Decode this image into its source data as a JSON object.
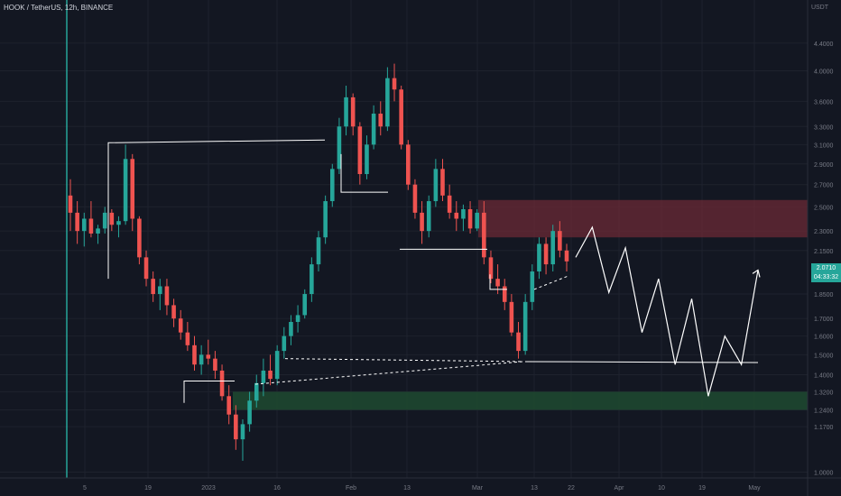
{
  "header": {
    "title": "HOOK / TetherUS, 12h, BINANCE",
    "currency": "USDT"
  },
  "price_badge": {
    "price": "2.0710",
    "countdown": "04:33:32"
  },
  "colors": {
    "background": "#131722",
    "up": "#26a69a",
    "down": "#ef5350",
    "resistance_zone": "#6b2a35",
    "support_zone": "#1f4a30",
    "annotation": "#ffffff",
    "axis_text": "#787b86"
  },
  "chart_data": {
    "type": "candlestick",
    "y_scale": "log",
    "y_range": [
      0.98,
      4.8
    ],
    "y_ticks": [
      "4.4000",
      "4.0000",
      "3.6000",
      "3.3000",
      "3.1000",
      "2.9000",
      "2.7000",
      "2.5000",
      "2.3000",
      "2.1500",
      "1.8500",
      "1.7000",
      "1.6000",
      "1.5000",
      "1.4000",
      "1.3200",
      "1.2400",
      "1.1700",
      "1.0000"
    ],
    "x_ticks": [
      "5",
      "19",
      "2023",
      "16",
      "Feb",
      "13",
      "Mar",
      "13",
      "22",
      "Apr",
      "10",
      "19",
      "May"
    ],
    "last_price": 2.071,
    "series_ohlc_sketch": [
      [
        2.6,
        2.75,
        2.3,
        2.45
      ],
      [
        2.45,
        2.55,
        2.2,
        2.3
      ],
      [
        2.3,
        2.45,
        2.18,
        2.4
      ],
      [
        2.4,
        2.55,
        2.25,
        2.28
      ],
      [
        2.28,
        2.35,
        2.2,
        2.32
      ],
      [
        2.32,
        2.5,
        2.28,
        2.45
      ],
      [
        2.45,
        2.48,
        2.3,
        2.35
      ],
      [
        2.35,
        2.42,
        2.25,
        2.38
      ],
      [
        2.38,
        3.1,
        2.35,
        2.95
      ],
      [
        2.95,
        3.0,
        2.3,
        2.4
      ],
      [
        2.4,
        2.42,
        2.05,
        2.1
      ],
      [
        2.1,
        2.15,
        1.9,
        1.95
      ],
      [
        1.95,
        2.0,
        1.8,
        1.85
      ],
      [
        1.85,
        1.95,
        1.75,
        1.9
      ],
      [
        1.9,
        1.95,
        1.72,
        1.78
      ],
      [
        1.78,
        1.82,
        1.65,
        1.7
      ],
      [
        1.7,
        1.75,
        1.58,
        1.62
      ],
      [
        1.62,
        1.68,
        1.52,
        1.55
      ],
      [
        1.55,
        1.6,
        1.42,
        1.45
      ],
      [
        1.45,
        1.55,
        1.4,
        1.5
      ],
      [
        1.5,
        1.58,
        1.45,
        1.48
      ],
      [
        1.48,
        1.52,
        1.38,
        1.42
      ],
      [
        1.42,
        1.45,
        1.28,
        1.3
      ],
      [
        1.3,
        1.35,
        1.18,
        1.22
      ],
      [
        1.22,
        1.26,
        1.08,
        1.12
      ],
      [
        1.12,
        1.2,
        1.04,
        1.18
      ],
      [
        1.18,
        1.32,
        1.15,
        1.28
      ],
      [
        1.28,
        1.4,
        1.25,
        1.36
      ],
      [
        1.36,
        1.48,
        1.3,
        1.42
      ],
      [
        1.42,
        1.5,
        1.35,
        1.38
      ],
      [
        1.38,
        1.55,
        1.35,
        1.52
      ],
      [
        1.52,
        1.65,
        1.48,
        1.6
      ],
      [
        1.6,
        1.72,
        1.55,
        1.68
      ],
      [
        1.68,
        1.78,
        1.62,
        1.72
      ],
      [
        1.72,
        1.88,
        1.7,
        1.85
      ],
      [
        1.85,
        2.1,
        1.8,
        2.05
      ],
      [
        2.05,
        2.3,
        2.0,
        2.25
      ],
      [
        2.25,
        2.6,
        2.2,
        2.55
      ],
      [
        2.55,
        2.9,
        2.5,
        2.85
      ],
      [
        2.85,
        3.4,
        2.8,
        3.3
      ],
      [
        3.3,
        3.8,
        3.2,
        3.65
      ],
      [
        3.65,
        3.7,
        3.2,
        3.3
      ],
      [
        3.3,
        3.35,
        2.7,
        2.8
      ],
      [
        2.8,
        3.2,
        2.75,
        3.1
      ],
      [
        3.1,
        3.55,
        3.05,
        3.45
      ],
      [
        3.45,
        3.6,
        3.2,
        3.3
      ],
      [
        3.3,
        4.05,
        3.25,
        3.9
      ],
      [
        3.9,
        4.1,
        3.6,
        3.75
      ],
      [
        3.75,
        3.8,
        3.05,
        3.1
      ],
      [
        3.1,
        3.15,
        2.65,
        2.7
      ],
      [
        2.7,
        2.75,
        2.4,
        2.45
      ],
      [
        2.45,
        2.55,
        2.2,
        2.3
      ],
      [
        2.3,
        2.6,
        2.25,
        2.55
      ],
      [
        2.55,
        2.95,
        2.5,
        2.85
      ],
      [
        2.85,
        2.95,
        2.55,
        2.6
      ],
      [
        2.6,
        2.7,
        2.4,
        2.45
      ],
      [
        2.45,
        2.55,
        2.3,
        2.4
      ],
      [
        2.4,
        2.52,
        2.3,
        2.48
      ],
      [
        2.48,
        2.55,
        2.28,
        2.32
      ],
      [
        2.32,
        2.48,
        2.3,
        2.45
      ],
      [
        2.45,
        2.55,
        2.05,
        2.1
      ],
      [
        2.1,
        2.15,
        1.92,
        1.95
      ],
      [
        1.95,
        2.05,
        1.85,
        1.9
      ],
      [
        1.9,
        1.95,
        1.75,
        1.8
      ],
      [
        1.8,
        1.85,
        1.6,
        1.62
      ],
      [
        1.62,
        1.68,
        1.48,
        1.52
      ],
      [
        1.52,
        1.85,
        1.5,
        1.8
      ],
      [
        1.8,
        2.05,
        1.75,
        2.0
      ],
      [
        2.0,
        2.25,
        1.95,
        2.2
      ],
      [
        2.2,
        2.25,
        1.98,
        2.05
      ],
      [
        2.05,
        2.35,
        2.0,
        2.3
      ],
      [
        2.3,
        2.38,
        2.1,
        2.15
      ],
      [
        2.15,
        2.2,
        2.0,
        2.071
      ]
    ]
  },
  "annotations": {
    "resistance_zone": [
      2.25,
      2.56
    ],
    "support_zone": [
      1.24,
      1.32
    ],
    "projection_path": [
      2.1,
      2.33,
      1.86,
      2.17,
      1.62,
      1.95,
      1.45,
      1.82,
      1.3,
      1.6,
      1.45,
      2.01
    ]
  }
}
